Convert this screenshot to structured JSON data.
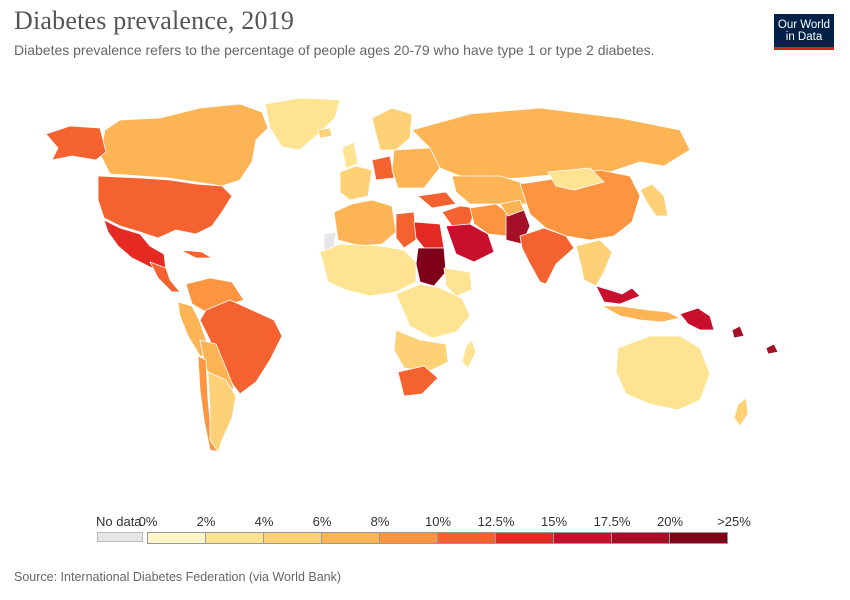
{
  "header": {
    "title": "Diabetes prevalence, 2019",
    "subtitle": "Diabetes prevalence refers to the percentage of people ages 20-79 who have type 1 or type 2 diabetes.",
    "logo_line1": "Our World",
    "logo_line2": "in Data"
  },
  "legend": {
    "no_data_label": "No data",
    "no_data_color": "#e6e6e6",
    "ticks": [
      "0%",
      "2%",
      "4%",
      "6%",
      "8%",
      "10%",
      "12.5%",
      "15%",
      "17.5%",
      "20%",
      ">25%"
    ],
    "colors": [
      "#fff5c8",
      "#fee392",
      "#fed176",
      "#fdb454",
      "#fd9540",
      "#f4622f",
      "#e52a24",
      "#c8102e",
      "#a50f28",
      "#7f0019"
    ]
  },
  "source": "Source: International Diabetes Federation (via World Bank)",
  "chart_data": {
    "type": "choropleth",
    "scale": [
      0,
      2,
      4,
      6,
      8,
      10,
      12.5,
      15,
      17.5,
      20,
      25
    ],
    "regions": [
      {
        "name": "Greenland",
        "bin": 1
      },
      {
        "name": "Canada",
        "bin": 3
      },
      {
        "name": "Alaska (United States)",
        "bin": 5
      },
      {
        "name": "United States",
        "bin": 5
      },
      {
        "name": "Mexico",
        "bin": 6
      },
      {
        "name": "Central America",
        "bin": 5
      },
      {
        "name": "Caribbean",
        "bin": 5
      },
      {
        "name": "Colombia/Venezuela",
        "bin": 4
      },
      {
        "name": "Peru/Ecuador",
        "bin": 3
      },
      {
        "name": "Brazil",
        "bin": 5
      },
      {
        "name": "Bolivia/Paraguay",
        "bin": 3
      },
      {
        "name": "Chile",
        "bin": 4
      },
      {
        "name": "Argentina",
        "bin": 2
      },
      {
        "name": "Western Sahara",
        "bin": -1
      },
      {
        "name": "Morocco/Algeria",
        "bin": 3
      },
      {
        "name": "Libya",
        "bin": 5
      },
      {
        "name": "Egypt",
        "bin": 6
      },
      {
        "name": "Sudan",
        "bin": 9
      },
      {
        "name": "West Africa / Sahel",
        "bin": 1
      },
      {
        "name": "Central & East Africa",
        "bin": 1
      },
      {
        "name": "Ethiopia",
        "bin": 1
      },
      {
        "name": "Southern Africa",
        "bin": 2
      },
      {
        "name": "South Africa",
        "bin": 5
      },
      {
        "name": "Madagascar",
        "bin": 1
      },
      {
        "name": "Iceland",
        "bin": 2
      },
      {
        "name": "United Kingdom/Ireland",
        "bin": 1
      },
      {
        "name": "Scandinavia",
        "bin": 2
      },
      {
        "name": "Western Europe",
        "bin": 2
      },
      {
        "name": "Germany",
        "bin": 5
      },
      {
        "name": "Eastern Europe",
        "bin": 3
      },
      {
        "name": "Russia",
        "bin": 3
      },
      {
        "name": "Turkey",
        "bin": 5
      },
      {
        "name": "Middle East",
        "bin": 5
      },
      {
        "name": "Saudi Arabia / Gulf",
        "bin": 7
      },
      {
        "name": "Iran",
        "bin": 4
      },
      {
        "name": "Central Asia",
        "bin": 3
      },
      {
        "name": "Pakistan",
        "bin": 8
      },
      {
        "name": "Afghanistan",
        "bin": 3
      },
      {
        "name": "India",
        "bin": 5
      },
      {
        "name": "China",
        "bin": 4
      },
      {
        "name": "Mongolia",
        "bin": 1
      },
      {
        "name": "Korea/Japan",
        "bin": 2
      },
      {
        "name": "Southeast Asia",
        "bin": 2
      },
      {
        "name": "Malaysia",
        "bin": 7
      },
      {
        "name": "Indonesia",
        "bin": 3
      },
      {
        "name": "Papua New Guinea",
        "bin": 7
      },
      {
        "name": "Pacific islands",
        "bin": 8
      },
      {
        "name": "Australia",
        "bin": 1
      },
      {
        "name": "New Zealand",
        "bin": 2
      }
    ]
  }
}
